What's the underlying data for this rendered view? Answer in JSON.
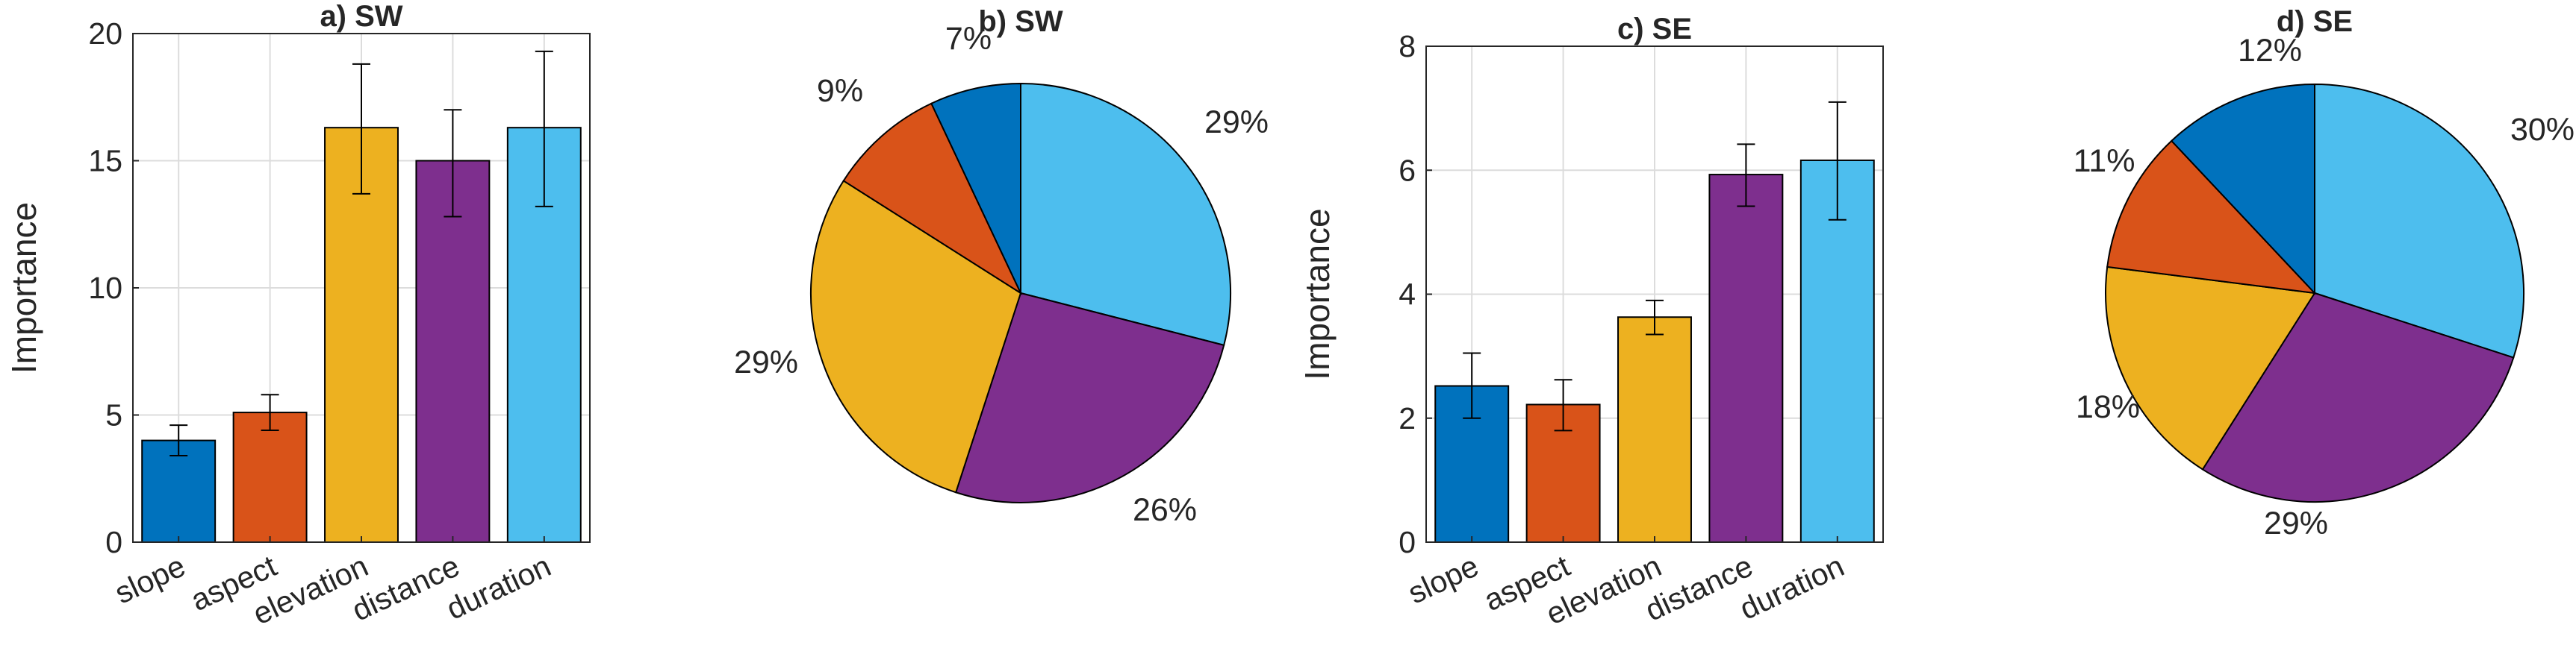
{
  "colors": {
    "slope": "#0072BD",
    "aspect": "#D95319",
    "elevation": "#EDB120",
    "distance": "#7E2F8E",
    "duration": "#4DBEEE"
  },
  "chart_data": [
    {
      "id": "a",
      "type": "bar",
      "title": "a) SW",
      "ylabel": "Importance",
      "xlabel": "",
      "categories": [
        "slope",
        "aspect",
        "elevation",
        "distance",
        "duration"
      ],
      "values": [
        4.0,
        5.1,
        16.3,
        15.0,
        16.3
      ],
      "error_low": [
        3.4,
        4.4,
        13.7,
        12.8,
        13.2
      ],
      "error_high": [
        4.6,
        5.8,
        18.8,
        17.0,
        19.3
      ],
      "ylim": [
        0,
        20
      ],
      "yticks": [
        "0",
        "5",
        "10",
        "15",
        "20"
      ],
      "grid": true
    },
    {
      "id": "b",
      "type": "pie",
      "title": "b) SW",
      "categories": [
        "duration",
        "distance",
        "elevation",
        "aspect",
        "slope"
      ],
      "values": [
        29,
        26,
        29,
        9,
        7
      ],
      "labels": [
        "29%",
        "26%",
        "29%",
        "9%",
        "7%"
      ],
      "grid": false
    },
    {
      "id": "c",
      "type": "bar",
      "title": "c) SE",
      "ylabel": "Importance",
      "xlabel": "",
      "categories": [
        "slope",
        "aspect",
        "elevation",
        "distance",
        "duration"
      ],
      "values": [
        2.52,
        2.22,
        3.63,
        5.93,
        6.16
      ],
      "error_low": [
        2.0,
        1.8,
        3.35,
        5.42,
        5.2
      ],
      "error_high": [
        3.05,
        2.62,
        3.9,
        6.42,
        7.1
      ],
      "ylim": [
        0,
        8
      ],
      "yticks": [
        "0",
        "2",
        "4",
        "6",
        "8"
      ],
      "grid": true
    },
    {
      "id": "d",
      "type": "pie",
      "title": "d) SE",
      "categories": [
        "duration",
        "distance",
        "elevation",
        "aspect",
        "slope"
      ],
      "values": [
        30,
        29,
        18,
        11,
        12
      ],
      "labels": [
        "30%",
        "29%",
        "18%",
        "11%",
        "12%"
      ],
      "grid": false
    }
  ]
}
